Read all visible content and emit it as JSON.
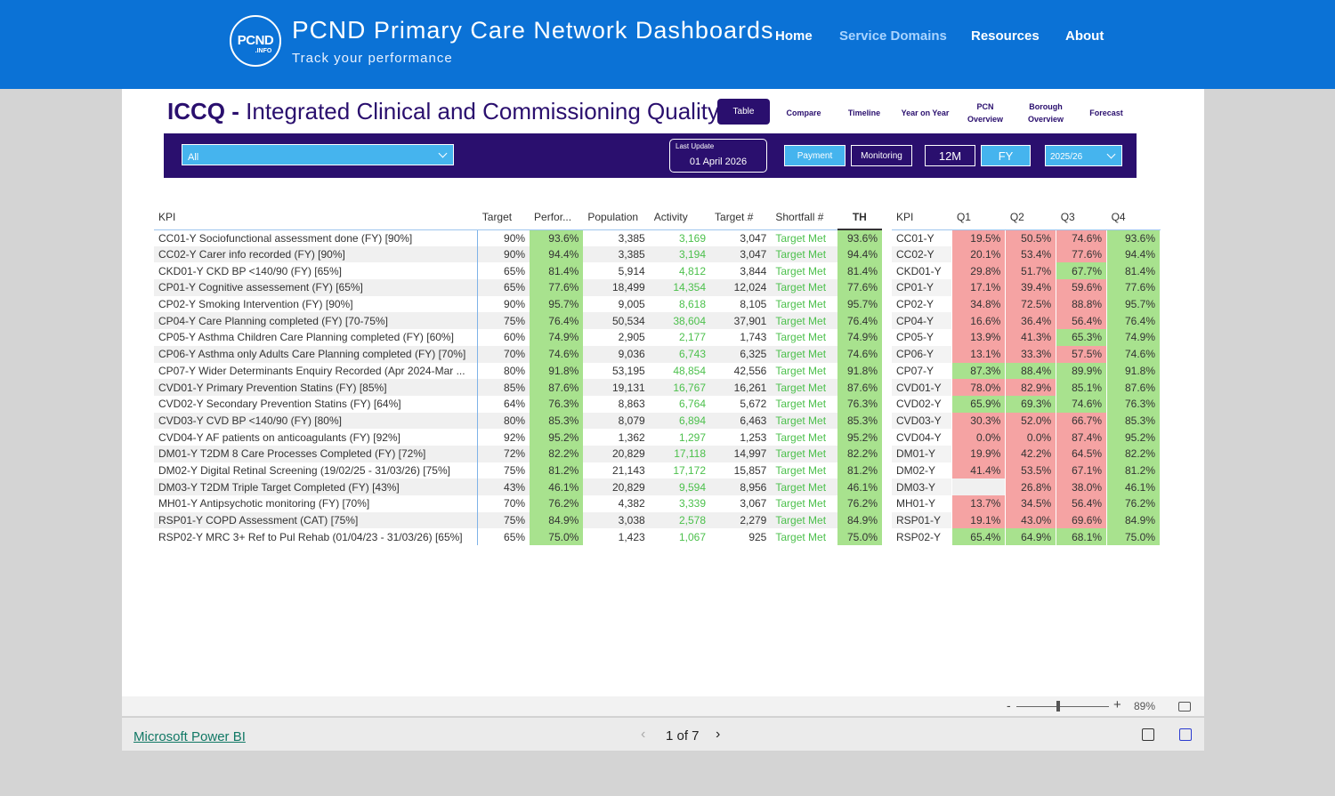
{
  "header": {
    "logo_main": "PCND",
    "logo_sub": ".INFO",
    "title_abbr": "PCND",
    "title_rest": "Primary Care Network Dashboards",
    "subtitle": "Track your performance",
    "nav": {
      "home": "Home",
      "service_domains": "Service Domains",
      "resources": "Resources",
      "about": "About"
    }
  },
  "report": {
    "title_abbr": "ICCQ",
    "title_sep": "-",
    "title_full": "Integrated Clinical and Commissioning Quality",
    "tabs": {
      "table": "Table",
      "compare": "Compare",
      "timeline": "Timeline",
      "year_on_year": "Year on Year",
      "pcn_overview_1": "PCN",
      "pcn_overview_2": "Overview",
      "borough_overview_1": "Borough",
      "borough_overview_2": "Overview",
      "forecast": "Forecast"
    },
    "filters": {
      "pcn_select": "All",
      "last_update_label": "Last Update",
      "last_update_value": "01 April 2026",
      "payment": "Payment",
      "monitoring": "Monitoring",
      "period_12m": "12M",
      "period_fy": "FY",
      "year": "2025/26"
    }
  },
  "main_table": {
    "headers": {
      "kpi": "KPI",
      "target": "Target",
      "performance": "Perfor...",
      "population": "Population",
      "activity": "Activity",
      "target_num": "Target #",
      "shortfall": "Shortfall #",
      "th": "TH"
    },
    "rows": [
      {
        "kpi": "CC01-Y Sociofunctional assessment done (FY) [90%]",
        "target": "90%",
        "perf": "93.6%",
        "pop": "3,385",
        "act": "3,169",
        "tnum": "3,047",
        "sf": "Target Met",
        "th": "93.6%"
      },
      {
        "kpi": "CC02-Y Carer info recorded (FY) [90%]",
        "target": "90%",
        "perf": "94.4%",
        "pop": "3,385",
        "act": "3,194",
        "tnum": "3,047",
        "sf": "Target Met",
        "th": "94.4%"
      },
      {
        "kpi": "CKD01-Y CKD BP <140/90 (FY) [65%]",
        "target": "65%",
        "perf": "81.4%",
        "pop": "5,914",
        "act": "4,812",
        "tnum": "3,844",
        "sf": "Target Met",
        "th": "81.4%"
      },
      {
        "kpi": "CP01-Y Cognitive assessement (FY) [65%]",
        "target": "65%",
        "perf": "77.6%",
        "pop": "18,499",
        "act": "14,354",
        "tnum": "12,024",
        "sf": "Target Met",
        "th": "77.6%"
      },
      {
        "kpi": "CP02-Y Smoking Intervention (FY) [90%]",
        "target": "90%",
        "perf": "95.7%",
        "pop": "9,005",
        "act": "8,618",
        "tnum": "8,105",
        "sf": "Target Met",
        "th": "95.7%"
      },
      {
        "kpi": "CP04-Y Care Planning completed (FY) [70-75%]",
        "target": "75%",
        "perf": "76.4%",
        "pop": "50,534",
        "act": "38,604",
        "tnum": "37,901",
        "sf": "Target Met",
        "th": "76.4%"
      },
      {
        "kpi": "CP05-Y Asthma Children Care Planning completed (FY) [60%]",
        "target": "60%",
        "perf": "74.9%",
        "pop": "2,905",
        "act": "2,177",
        "tnum": "1,743",
        "sf": "Target Met",
        "th": "74.9%"
      },
      {
        "kpi": "CP06-Y Asthma only Adults Care Planning completed (FY) [70%]",
        "target": "70%",
        "perf": "74.6%",
        "pop": "9,036",
        "act": "6,743",
        "tnum": "6,325",
        "sf": "Target Met",
        "th": "74.6%"
      },
      {
        "kpi": "CP07-Y Wider Determinants Enquiry Recorded (Apr 2024-Mar ...",
        "target": "80%",
        "perf": "91.8%",
        "pop": "53,195",
        "act": "48,854",
        "tnum": "42,556",
        "sf": "Target Met",
        "th": "91.8%"
      },
      {
        "kpi": "CVD01-Y Primary Prevention Statins (FY) [85%]",
        "target": "85%",
        "perf": "87.6%",
        "pop": "19,131",
        "act": "16,767",
        "tnum": "16,261",
        "sf": "Target Met",
        "th": "87.6%"
      },
      {
        "kpi": "CVD02-Y Secondary Prevention Statins (FY) [64%]",
        "target": "64%",
        "perf": "76.3%",
        "pop": "8,863",
        "act": "6,764",
        "tnum": "5,672",
        "sf": "Target Met",
        "th": "76.3%"
      },
      {
        "kpi": "CVD03-Y CVD BP <140/90 (FY) [80%]",
        "target": "80%",
        "perf": "85.3%",
        "pop": "8,079",
        "act": "6,894",
        "tnum": "6,463",
        "sf": "Target Met",
        "th": "85.3%"
      },
      {
        "kpi": "CVD04-Y AF patients on anticoagulants (FY) [92%]",
        "target": "92%",
        "perf": "95.2%",
        "pop": "1,362",
        "act": "1,297",
        "tnum": "1,253",
        "sf": "Target Met",
        "th": "95.2%"
      },
      {
        "kpi": "DM01-Y T2DM 8 Care Processes Completed (FY) [72%]",
        "target": "72%",
        "perf": "82.2%",
        "pop": "20,829",
        "act": "17,118",
        "tnum": "14,997",
        "sf": "Target Met",
        "th": "82.2%"
      },
      {
        "kpi": "DM02-Y Digital Retinal Screening (19/02/25 - 31/03/26) [75%]",
        "target": "75%",
        "perf": "81.2%",
        "pop": "21,143",
        "act": "17,172",
        "tnum": "15,857",
        "sf": "Target Met",
        "th": "81.2%"
      },
      {
        "kpi": "DM03-Y T2DM Triple Target Completed (FY) [43%]",
        "target": "43%",
        "perf": "46.1%",
        "pop": "20,829",
        "act": "9,594",
        "tnum": "8,956",
        "sf": "Target Met",
        "th": "46.1%"
      },
      {
        "kpi": "MH01-Y Antipsychotic monitoring (FY) [70%]",
        "target": "70%",
        "perf": "76.2%",
        "pop": "4,382",
        "act": "3,339",
        "tnum": "3,067",
        "sf": "Target Met",
        "th": "76.2%"
      },
      {
        "kpi": "RSP01-Y COPD Assessment (CAT) [75%]",
        "target": "75%",
        "perf": "84.9%",
        "pop": "3,038",
        "act": "2,578",
        "tnum": "2,279",
        "sf": "Target Met",
        "th": "84.9%"
      },
      {
        "kpi": "RSP02-Y MRC 3+ Ref to Pul Rehab (01/04/23 - 31/03/26) [65%]",
        "target": "65%",
        "perf": "75.0%",
        "pop": "1,423",
        "act": "1,067",
        "tnum": "925",
        "sf": "Target Met",
        "th": "75.0%"
      }
    ]
  },
  "quarter_table": {
    "headers": {
      "kpi": "KPI",
      "q1": "Q1",
      "q2": "Q2",
      "q3": "Q3",
      "q4": "Q4"
    },
    "colors": {
      "red": "#f5a3a3",
      "green": "#a8e28e",
      "empty": "#f0f0f0"
    },
    "rows": [
      {
        "kpi": "CC01-Y",
        "q": [
          "19.5%",
          "50.5%",
          "74.6%",
          "93.6%"
        ],
        "c": [
          "r",
          "r",
          "r",
          "g"
        ]
      },
      {
        "kpi": "CC02-Y",
        "q": [
          "20.1%",
          "53.4%",
          "77.6%",
          "94.4%"
        ],
        "c": [
          "r",
          "r",
          "r",
          "g"
        ]
      },
      {
        "kpi": "CKD01-Y",
        "q": [
          "29.8%",
          "51.7%",
          "67.7%",
          "81.4%"
        ],
        "c": [
          "r",
          "r",
          "g",
          "g"
        ]
      },
      {
        "kpi": "CP01-Y",
        "q": [
          "17.1%",
          "39.4%",
          "59.6%",
          "77.6%"
        ],
        "c": [
          "r",
          "r",
          "r",
          "g"
        ]
      },
      {
        "kpi": "CP02-Y",
        "q": [
          "34.8%",
          "72.5%",
          "88.8%",
          "95.7%"
        ],
        "c": [
          "r",
          "r",
          "r",
          "g"
        ]
      },
      {
        "kpi": "CP04-Y",
        "q": [
          "16.6%",
          "36.4%",
          "56.4%",
          "76.4%"
        ],
        "c": [
          "r",
          "r",
          "r",
          "g"
        ]
      },
      {
        "kpi": "CP05-Y",
        "q": [
          "13.9%",
          "41.3%",
          "65.3%",
          "74.9%"
        ],
        "c": [
          "r",
          "r",
          "g",
          "g"
        ]
      },
      {
        "kpi": "CP06-Y",
        "q": [
          "13.1%",
          "33.3%",
          "57.5%",
          "74.6%"
        ],
        "c": [
          "r",
          "r",
          "r",
          "g"
        ]
      },
      {
        "kpi": "CP07-Y",
        "q": [
          "87.3%",
          "88.4%",
          "89.9%",
          "91.8%"
        ],
        "c": [
          "g",
          "g",
          "g",
          "g"
        ]
      },
      {
        "kpi": "CVD01-Y",
        "q": [
          "78.0%",
          "82.9%",
          "85.1%",
          "87.6%"
        ],
        "c": [
          "r",
          "r",
          "g",
          "g"
        ]
      },
      {
        "kpi": "CVD02-Y",
        "q": [
          "65.9%",
          "69.3%",
          "74.6%",
          "76.3%"
        ],
        "c": [
          "g",
          "g",
          "g",
          "g"
        ]
      },
      {
        "kpi": "CVD03-Y",
        "q": [
          "30.3%",
          "52.0%",
          "66.7%",
          "85.3%"
        ],
        "c": [
          "r",
          "r",
          "r",
          "g"
        ]
      },
      {
        "kpi": "CVD04-Y",
        "q": [
          "0.0%",
          "0.0%",
          "87.4%",
          "95.2%"
        ],
        "c": [
          "r",
          "r",
          "r",
          "g"
        ]
      },
      {
        "kpi": "DM01-Y",
        "q": [
          "19.9%",
          "42.2%",
          "64.5%",
          "82.2%"
        ],
        "c": [
          "r",
          "r",
          "r",
          "g"
        ]
      },
      {
        "kpi": "DM02-Y",
        "q": [
          "41.4%",
          "53.5%",
          "67.1%",
          "81.2%"
        ],
        "c": [
          "r",
          "r",
          "r",
          "g"
        ]
      },
      {
        "kpi": "DM03-Y",
        "q": [
          "",
          "26.8%",
          "38.0%",
          "46.1%"
        ],
        "c": [
          "e",
          "r",
          "r",
          "g"
        ]
      },
      {
        "kpi": "MH01-Y",
        "q": [
          "13.7%",
          "34.5%",
          "56.4%",
          "76.2%"
        ],
        "c": [
          "r",
          "r",
          "r",
          "g"
        ]
      },
      {
        "kpi": "RSP01-Y",
        "q": [
          "19.1%",
          "43.0%",
          "69.6%",
          "84.9%"
        ],
        "c": [
          "r",
          "r",
          "r",
          "g"
        ]
      },
      {
        "kpi": "RSP02-Y",
        "q": [
          "65.4%",
          "64.9%",
          "68.1%",
          "75.0%"
        ],
        "c": [
          "g",
          "g",
          "g",
          "g"
        ]
      }
    ]
  },
  "footer": {
    "zoom_minus": "-",
    "zoom_plus": "+",
    "zoom_value": "89%",
    "zoom_level": 0.89,
    "powerbi_link": "Microsoft Power BI",
    "pager_prev": "‹",
    "pager_text": "1 of 7",
    "pager_next": "›"
  }
}
